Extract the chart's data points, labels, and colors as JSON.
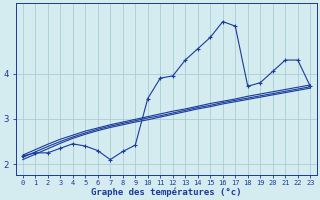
{
  "xlabel": "Graphe des températures (°c)",
  "background_color": "#d4ecf0",
  "grid_color": "#aacdd5",
  "line_color": "#1a3a9c",
  "x_hours": [
    0,
    1,
    2,
    3,
    4,
    5,
    6,
    7,
    8,
    9,
    10,
    11,
    12,
    13,
    14,
    15,
    16,
    17,
    18,
    19,
    20,
    21,
    22,
    23
  ],
  "temp_main": [
    2.18,
    2.25,
    2.25,
    2.35,
    2.45,
    2.4,
    2.3,
    2.1,
    2.28,
    2.42,
    3.45,
    3.9,
    3.95,
    4.3,
    4.55,
    4.8,
    5.15,
    5.05,
    3.72,
    3.8,
    4.05,
    4.3,
    4.3,
    3.72
  ],
  "trend_line1": [
    2.1,
    2.22,
    2.34,
    2.46,
    2.57,
    2.66,
    2.74,
    2.81,
    2.87,
    2.93,
    2.98,
    3.04,
    3.1,
    3.16,
    3.22,
    3.27,
    3.33,
    3.38,
    3.43,
    3.48,
    3.53,
    3.58,
    3.63,
    3.68
  ],
  "trend_line2": [
    2.15,
    2.27,
    2.39,
    2.5,
    2.6,
    2.69,
    2.77,
    2.84,
    2.9,
    2.96,
    3.02,
    3.07,
    3.13,
    3.19,
    3.25,
    3.3,
    3.36,
    3.41,
    3.46,
    3.51,
    3.56,
    3.61,
    3.66,
    3.71
  ],
  "trend_line3": [
    2.2,
    2.32,
    2.44,
    2.55,
    2.64,
    2.73,
    2.8,
    2.87,
    2.93,
    2.99,
    3.05,
    3.11,
    3.17,
    3.22,
    3.28,
    3.34,
    3.39,
    3.44,
    3.5,
    3.55,
    3.6,
    3.65,
    3.7,
    3.75
  ],
  "xlim": [
    -0.5,
    23.5
  ],
  "ylim": [
    1.75,
    5.55
  ],
  "yticks": [
    2,
    3,
    4
  ],
  "ytick_labels": [
    "2",
    "3",
    "4"
  ],
  "xtick_labels": [
    "0",
    "1",
    "2",
    "3",
    "4",
    "5",
    "6",
    "7",
    "8",
    "9",
    "10",
    "11",
    "12",
    "13",
    "14",
    "15",
    "16",
    "17",
    "18",
    "19",
    "20",
    "21",
    "22",
    "23"
  ]
}
